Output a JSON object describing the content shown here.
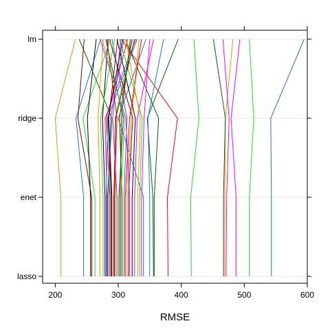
{
  "chart_data": {
    "type": "line",
    "style": "parallel-coordinates",
    "xlabel": "RMSE",
    "ylabel": "",
    "xlim": [
      180,
      600
    ],
    "x_ticks": [
      200,
      300,
      400,
      500,
      600
    ],
    "x_tick_labels": [
      "200",
      "300",
      "400",
      "500",
      "600"
    ],
    "categories": [
      "lm",
      "ridge",
      "enet",
      "lasso"
    ],
    "grid": true,
    "legend": "none",
    "series": [
      {
        "color": "#1F6FE0",
        "values": [
          595,
          542,
          543,
          543
        ]
      },
      {
        "color": "#FF8C00",
        "values": [
          232,
          200,
          209,
          209
        ]
      },
      {
        "color": "#FF8C00",
        "values": [
          482,
          470,
          469,
          469
        ]
      },
      {
        "color": "#FF00FF",
        "values": [
          493,
          479,
          487,
          487
        ]
      },
      {
        "color": "#22DD22",
        "values": [
          508,
          515,
          508,
          508
        ]
      },
      {
        "color": "#22DD22",
        "values": [
          420,
          428,
          415,
          416
        ]
      },
      {
        "color": "#FF00FF",
        "values": [
          466,
          476,
          472,
          471
        ]
      },
      {
        "color": "#006400",
        "values": [
          451,
          470,
          467,
          467
        ]
      },
      {
        "color": "#006400",
        "values": [
          395,
          346,
          355,
          356
        ]
      },
      {
        "color": "#FF0000",
        "values": [
          305,
          394,
          378,
          379
        ]
      },
      {
        "color": "#1F6FE0",
        "values": [
          372,
          347,
          350,
          350
        ]
      },
      {
        "color": "#1F6FE0",
        "values": [
          272,
          233,
          245,
          245
        ]
      },
      {
        "color": "#8B0000",
        "values": [
          246,
          236,
          258,
          258
        ]
      },
      {
        "color": "#22DD22",
        "values": [
          288,
          244,
          263,
          263
        ]
      },
      {
        "color": "#000000",
        "values": [
          265,
          251,
          256,
          256
        ]
      },
      {
        "color": "#006400",
        "values": [
          238,
          290,
          283,
          283
        ]
      },
      {
        "color": "#FF00FF",
        "values": [
          328,
          279,
          282,
          282
        ]
      },
      {
        "color": "#FF0000",
        "values": [
          319,
          305,
          303,
          303
        ]
      },
      {
        "color": "#006400",
        "values": [
          311,
          364,
          357,
          357
        ]
      },
      {
        "color": "#1F6FE0",
        "values": [
          344,
          300,
          340,
          340
        ]
      },
      {
        "color": "#FF8C00",
        "values": [
          333,
          321,
          313,
          313
        ]
      },
      {
        "color": "#8B0000",
        "values": [
          299,
          285,
          290,
          290
        ]
      },
      {
        "color": "#22DD22",
        "values": [
          323,
          295,
          296,
          296
        ]
      },
      {
        "color": "#000000",
        "values": [
          284,
          275,
          279,
          279
        ]
      },
      {
        "color": "#1F6FE0",
        "values": [
          290,
          314,
          309,
          309
        ]
      },
      {
        "color": "#FF00FF",
        "values": [
          356,
          330,
          326,
          326
        ]
      },
      {
        "color": "#FF0000",
        "values": [
          315,
          281,
          287,
          287
        ]
      },
      {
        "color": "#FF8C00",
        "values": [
          276,
          268,
          271,
          271
        ]
      },
      {
        "color": "#22DD22",
        "values": [
          302,
          338,
          334,
          334
        ]
      },
      {
        "color": "#006400",
        "values": [
          280,
          308,
          301,
          301
        ]
      },
      {
        "color": "#8B0000",
        "values": [
          326,
          296,
          293,
          293
        ]
      },
      {
        "color": "#FF00FF",
        "values": [
          271,
          312,
          318,
          318
        ]
      },
      {
        "color": "#1F6FE0",
        "values": [
          309,
          288,
          285,
          285
        ]
      },
      {
        "color": "#000000",
        "values": [
          298,
          327,
          322,
          322
        ]
      },
      {
        "color": "#FF0000",
        "values": [
          337,
          318,
          311,
          311
        ]
      },
      {
        "color": "#22DD22",
        "values": [
          294,
          272,
          276,
          276
        ]
      },
      {
        "color": "#FF8C00",
        "values": [
          312,
          335,
          331,
          331
        ]
      },
      {
        "color": "#8B0000",
        "values": [
          286,
          323,
          316,
          316
        ]
      },
      {
        "color": "#FF00FF",
        "values": [
          304,
          291,
          298,
          298
        ]
      },
      {
        "color": "#1F6FE0",
        "values": [
          330,
          283,
          281,
          281
        ]
      },
      {
        "color": "#006400",
        "values": [
          321,
          302,
          306,
          306
        ]
      },
      {
        "color": "#FF0000",
        "values": [
          282,
          298,
          294,
          294
        ]
      },
      {
        "color": "#000000",
        "values": [
          307,
          284,
          289,
          289
        ]
      },
      {
        "color": "#22DD22",
        "values": [
          274,
          310,
          304,
          304
        ]
      },
      {
        "color": "#FF00FF",
        "values": [
          350,
          341,
          337,
          337
        ]
      }
    ]
  }
}
